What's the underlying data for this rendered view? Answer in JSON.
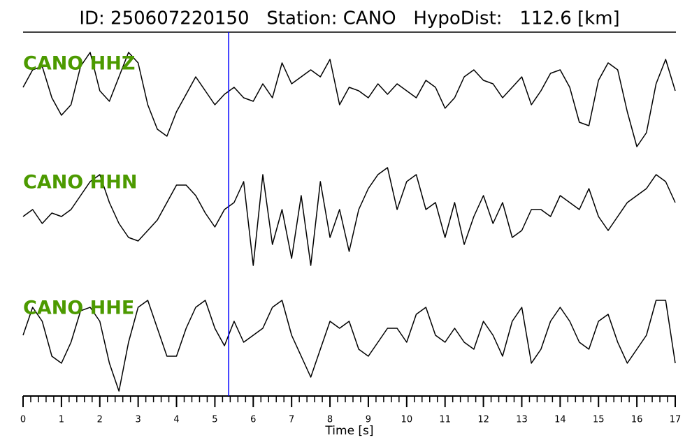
{
  "chart_data": {
    "type": "line",
    "title": "ID: 250607220150   Station: CANO   HypoDist:   112.6 [km]",
    "xlabel": "Time [s]",
    "x": [
      0,
      0.25,
      0.5,
      0.75,
      1,
      1.25,
      1.5,
      1.75,
      2,
      2.25,
      2.5,
      2.75,
      3,
      3.25,
      3.5,
      3.75,
      4,
      4.25,
      4.5,
      4.75,
      5,
      5.25,
      5.5,
      5.75,
      6,
      6.25,
      6.5,
      6.75,
      7,
      7.25,
      7.5,
      7.75,
      8,
      8.25,
      8.5,
      8.75,
      9,
      9.25,
      9.5,
      9.75,
      10,
      10.25,
      10.5,
      10.75,
      11,
      11.25,
      11.5,
      11.75,
      12,
      12.25,
      12.5,
      12.75,
      13,
      13.25,
      13.5,
      13.75,
      14,
      14.25,
      14.5,
      14.75,
      15,
      15.25,
      15.5,
      15.75,
      16,
      16.25,
      16.5,
      16.75,
      17
    ],
    "series": [
      {
        "name": "CANO HHZ",
        "color": "#000000",
        "label_color": "#4c9a00",
        "values": [
          0.05,
          0.3,
          0.35,
          -0.1,
          -0.35,
          -0.2,
          0.35,
          0.55,
          0,
          -0.15,
          0.2,
          0.55,
          0.4,
          -0.2,
          -0.55,
          -0.65,
          -0.3,
          -0.05,
          0.2,
          0,
          -0.2,
          -0.05,
          0.05,
          -0.1,
          -0.15,
          0.1,
          -0.1,
          0.4,
          0.1,
          0.2,
          0.3,
          0.2,
          0.45,
          -0.2,
          0.05,
          0,
          -0.1,
          0.1,
          -0.05,
          0.1,
          0,
          -0.1,
          0.15,
          0.05,
          -0.25,
          -0.1,
          0.2,
          0.3,
          0.15,
          0.1,
          -0.1,
          0.05,
          0.2,
          -0.2,
          0,
          0.25,
          0.3,
          0.05,
          -0.45,
          -0.5,
          0.15,
          0.4,
          0.3,
          -0.3,
          -0.8,
          -0.6,
          0.1,
          0.45,
          0
        ]
      },
      {
        "name": "CANO HHN",
        "color": "#000000",
        "label_color": "#4c9a00",
        "values": [
          -0.1,
          0,
          -0.2,
          -0.05,
          -0.1,
          0,
          0.2,
          0.4,
          0.5,
          0.1,
          -0.2,
          -0.4,
          -0.45,
          -0.3,
          -0.15,
          0.1,
          0.35,
          0.35,
          0.2,
          -0.05,
          -0.25,
          0,
          0.1,
          0.4,
          -0.8,
          0.5,
          -0.5,
          0,
          -0.7,
          0.2,
          -0.8,
          0.4,
          -0.4,
          0,
          -0.6,
          0,
          0.3,
          0.5,
          0.6,
          0,
          0.4,
          0.5,
          0,
          0.1,
          -0.4,
          0.1,
          -0.5,
          -0.1,
          0.2,
          -0.2,
          0.1,
          -0.4,
          -0.3,
          0,
          0,
          -0.1,
          0.2,
          0.1,
          0,
          0.3,
          -0.1,
          -0.3,
          -0.1,
          0.1,
          0.2,
          0.3,
          0.5,
          0.4,
          0.1
        ]
      },
      {
        "name": "CANO HHE",
        "color": "#000000",
        "label_color": "#4c9a00",
        "values": [
          0,
          0.4,
          0.2,
          -0.3,
          -0.4,
          -0.1,
          0.35,
          0.4,
          0.2,
          -0.4,
          -0.8,
          -0.1,
          0.4,
          0.5,
          0.1,
          -0.3,
          -0.3,
          0.1,
          0.4,
          0.5,
          0.1,
          -0.15,
          0.2,
          -0.1,
          0,
          0.1,
          0.4,
          0.5,
          0,
          -0.3,
          -0.6,
          -0.2,
          0.2,
          0.1,
          0.2,
          -0.2,
          -0.3,
          -0.1,
          0.1,
          0.1,
          -0.1,
          0.3,
          0.4,
          0,
          -0.1,
          0.1,
          -0.1,
          -0.2,
          0.2,
          0,
          -0.3,
          0.2,
          0.4,
          -0.4,
          -0.2,
          0.2,
          0.4,
          0.2,
          -0.1,
          -0.2,
          0.2,
          0.3,
          -0.1,
          -0.4,
          -0.2,
          0,
          0.5,
          0.5,
          -0.4
        ]
      }
    ],
    "xlim": [
      0,
      17
    ],
    "ylim": [
      -1,
      1
    ],
    "xticks": [
      0,
      1,
      2,
      3,
      4,
      5,
      6,
      7,
      8,
      9,
      10,
      11,
      12,
      13,
      14,
      15,
      16,
      17
    ],
    "xminor_step": 0.2,
    "vline": {
      "x": 5.36,
      "color": "#0000ff"
    }
  }
}
